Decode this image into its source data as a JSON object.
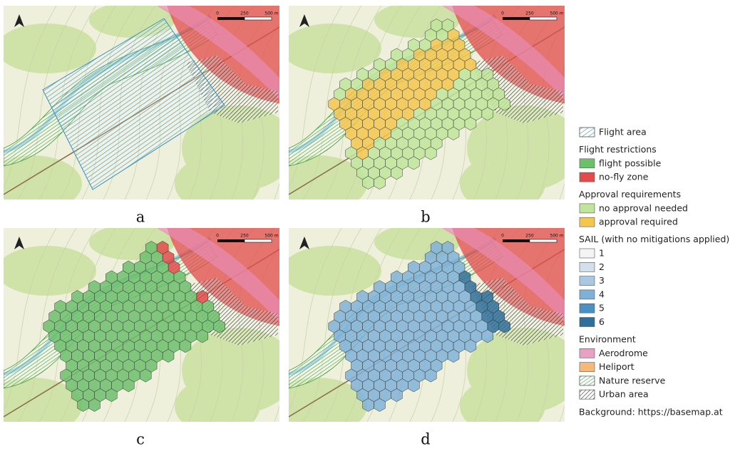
{
  "panels": [
    {
      "label": "a",
      "mode": "area",
      "scale_labels": [
        "0",
        "250",
        "500 m"
      ]
    },
    {
      "label": "b",
      "mode": "approval",
      "scale_labels": [
        "0",
        "250",
        "500 m"
      ]
    },
    {
      "label": "c",
      "mode": "restriction",
      "scale_labels": [
        "0",
        "250",
        "500 m"
      ]
    },
    {
      "label": "d",
      "mode": "sail",
      "scale_labels": [
        "0",
        "250",
        "500 m"
      ]
    }
  ],
  "legend": [
    {
      "label": "Flight area",
      "fill": "#ffffff",
      "pattern": "blue-hatch"
    },
    {
      "heading": "Flight restrictions"
    },
    {
      "label": "flight possible",
      "fill": "#6cc06c"
    },
    {
      "label": "no-fly zone",
      "fill": "#e24b4b"
    },
    {
      "heading": "Approval requirements"
    },
    {
      "label": "no approval needed",
      "fill": "#c0e59a"
    },
    {
      "label": "approval required",
      "fill": "#f3c64e"
    },
    {
      "heading": "SAIL (with no mitigations applied)"
    },
    {
      "label": "1",
      "fill": "#f4f4f4"
    },
    {
      "label": "2",
      "fill": "#d3dfea"
    },
    {
      "label": "3",
      "fill": "#a9c8e2"
    },
    {
      "label": "4",
      "fill": "#7fb1d8"
    },
    {
      "label": "5",
      "fill": "#4a91c3"
    },
    {
      "label": "6",
      "fill": "#2f6f99"
    },
    {
      "heading": "Environment"
    },
    {
      "label": "Aerodrome",
      "fill": "#e8a1c2"
    },
    {
      "label": "Heliport",
      "fill": "#f6b97a"
    },
    {
      "label": "Nature reserve",
      "fill": "#ffffff",
      "pattern": "green-hatch"
    },
    {
      "label": "Urban area",
      "fill": "#ffffff",
      "pattern": "black-hatch"
    }
  ],
  "credit": "Background: https://basemap.at"
}
